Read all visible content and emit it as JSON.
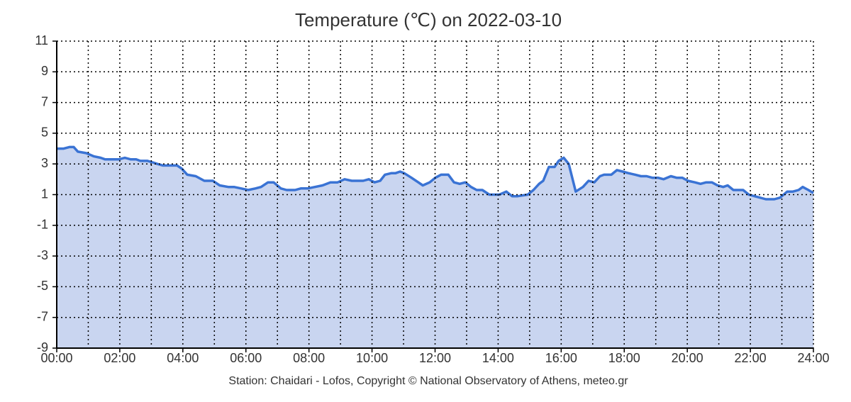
{
  "chart_data": {
    "type": "area",
    "title": "Temperature (℃) on 2022-03-10",
    "footer": "Station: Chaidari - Lofos, Copyright © National Observatory of Athens, meteo.gr",
    "x": [
      0,
      0.22,
      0.4,
      0.54,
      0.67,
      0.94,
      1.17,
      1.39,
      1.53,
      1.98,
      2.16,
      2.34,
      2.52,
      2.65,
      2.88,
      3.04,
      3.19,
      3.37,
      3.82,
      3.96,
      4.14,
      4.41,
      4.68,
      4.95,
      5.17,
      5.44,
      5.62,
      5.85,
      6.07,
      6.3,
      6.48,
      6.7,
      6.88,
      7.11,
      7.29,
      7.56,
      7.74,
      7.96,
      8.19,
      8.43,
      8.68,
      8.91,
      9.13,
      9.36,
      9.72,
      9.9,
      10.08,
      10.26,
      10.41,
      10.62,
      10.75,
      10.89,
      11.02,
      11.25,
      11.47,
      11.61,
      11.83,
      12.01,
      12.19,
      12.42,
      12.6,
      12.78,
      12.96,
      13.14,
      13.32,
      13.5,
      13.72,
      14.04,
      14.26,
      14.44,
      14.62,
      14.94,
      15.12,
      15.3,
      15.43,
      15.61,
      15.79,
      15.92,
      16.08,
      16.24,
      16.46,
      16.69,
      16.87,
      17.05,
      17.23,
      17.36,
      17.59,
      17.77,
      17.95,
      18.13,
      18.35,
      18.53,
      18.71,
      18.89,
      19.07,
      19.25,
      19.48,
      19.66,
      19.84,
      20.02,
      20.24,
      20.42,
      20.6,
      20.78,
      20.96,
      21.14,
      21.28,
      21.46,
      21.77,
      21.95,
      22.13,
      22.31,
      22.49,
      22.76,
      22.94,
      23.17,
      23.35,
      23.53,
      23.66,
      23.84,
      24.0
    ],
    "series": [
      {
        "name": "Temperature",
        "color": "#3a73d4",
        "fill": "#c9d5f0",
        "values": [
          4.0,
          4.0,
          4.1,
          4.1,
          3.8,
          3.7,
          3.5,
          3.4,
          3.3,
          3.3,
          3.4,
          3.3,
          3.3,
          3.2,
          3.2,
          3.1,
          3.0,
          2.9,
          2.9,
          2.7,
          2.3,
          2.2,
          1.9,
          1.9,
          1.6,
          1.5,
          1.5,
          1.4,
          1.3,
          1.4,
          1.5,
          1.8,
          1.8,
          1.4,
          1.3,
          1.3,
          1.4,
          1.4,
          1.5,
          1.6,
          1.8,
          1.8,
          2.0,
          1.9,
          1.9,
          2.0,
          1.8,
          1.9,
          2.3,
          2.4,
          2.4,
          2.5,
          2.4,
          2.1,
          1.8,
          1.6,
          1.8,
          2.1,
          2.3,
          2.3,
          1.8,
          1.7,
          1.8,
          1.5,
          1.3,
          1.3,
          1.0,
          1.0,
          1.2,
          0.9,
          0.9,
          1.0,
          1.3,
          1.7,
          1.9,
          2.8,
          2.8,
          3.2,
          3.4,
          3.0,
          1.2,
          1.5,
          1.9,
          1.8,
          2.2,
          2.3,
          2.3,
          2.6,
          2.5,
          2.4,
          2.3,
          2.2,
          2.2,
          2.1,
          2.1,
          2.0,
          2.2,
          2.1,
          2.1,
          1.9,
          1.8,
          1.7,
          1.8,
          1.8,
          1.6,
          1.5,
          1.6,
          1.3,
          1.3,
          1.0,
          0.9,
          0.8,
          0.7,
          0.7,
          0.8,
          1.2,
          1.2,
          1.3,
          1.5,
          1.3,
          1.1
        ]
      }
    ],
    "xlim": [
      0,
      24
    ],
    "xticks": [
      {
        "value": 0,
        "label": "00:00"
      },
      {
        "value": 2,
        "label": "02:00"
      },
      {
        "value": 4,
        "label": "04:00"
      },
      {
        "value": 6,
        "label": "06:00"
      },
      {
        "value": 8,
        "label": "08:00"
      },
      {
        "value": 10,
        "label": "10:00"
      },
      {
        "value": 12,
        "label": "12:00"
      },
      {
        "value": 14,
        "label": "14:00"
      },
      {
        "value": 16,
        "label": "16:00"
      },
      {
        "value": 18,
        "label": "18:00"
      },
      {
        "value": 20,
        "label": "20:00"
      },
      {
        "value": 22,
        "label": "22:00"
      },
      {
        "value": 24,
        "label": "24:00"
      }
    ],
    "xgrid": [
      1,
      2,
      3,
      4,
      5,
      6,
      7,
      8,
      9,
      10,
      11,
      12,
      13,
      14,
      15,
      16,
      17,
      18,
      19,
      20,
      21,
      22,
      23,
      24
    ],
    "ylim": [
      -9,
      11
    ],
    "yticks": [
      -9,
      -7,
      -5,
      -3,
      -1,
      1,
      3,
      5,
      7,
      9,
      11
    ],
    "grid": true
  }
}
